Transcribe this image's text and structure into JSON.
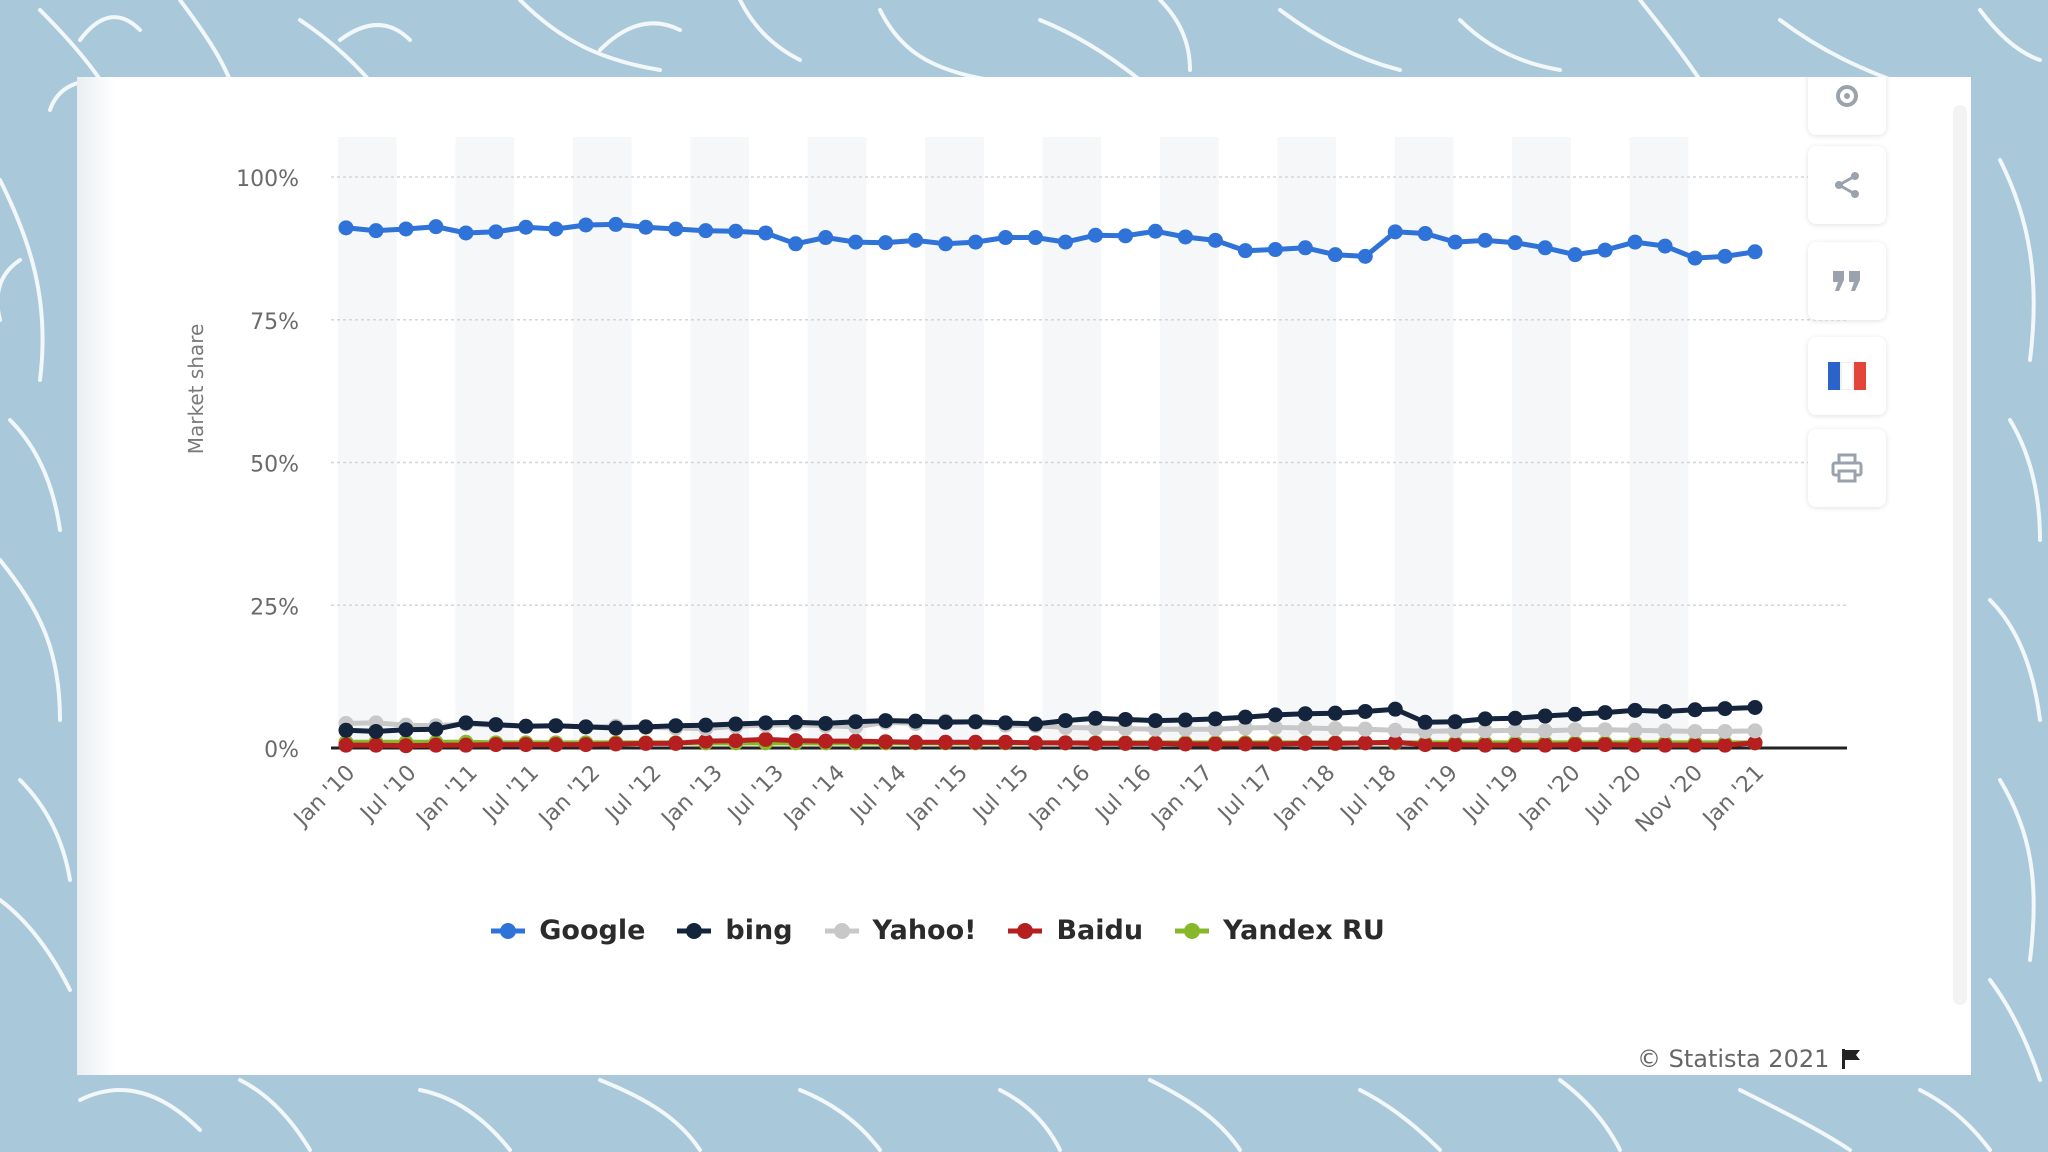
{
  "chart_data": {
    "type": "line",
    "ylabel": "Market share",
    "ylim": [
      0,
      100
    ],
    "yticks": [
      0,
      25,
      50,
      75,
      100
    ],
    "ytick_labels": [
      "0%",
      "25%",
      "50%",
      "75%",
      "100%"
    ],
    "x_tick_labels": [
      "Jan '10",
      "Jul '10",
      "Jan '11",
      "Jul '11",
      "Jan '12",
      "Jul '12",
      "Jan '13",
      "Jul '13",
      "Jan '14",
      "Jul '14",
      "Jan '15",
      "Jul '15",
      "Jan '16",
      "Jul '16",
      "Jan '17",
      "Jul '17",
      "Jan '18",
      "Jul '18",
      "Jan '19",
      "Jul '19",
      "Jan '20",
      "Jul '20",
      "Nov '20",
      "Jan '21"
    ],
    "grid": true,
    "legend_position": "bottom",
    "series": [
      {
        "name": "Google",
        "color": "#2f72d8",
        "values": [
          91.1,
          90.6,
          90.9,
          91.3,
          90.2,
          90.4,
          91.2,
          90.9,
          91.6,
          91.7,
          91.2,
          90.9,
          90.6,
          90.5,
          90.2,
          88.3,
          89.4,
          88.6,
          88.5,
          88.9,
          88.3,
          88.6,
          89.4,
          89.4,
          88.6,
          89.8,
          89.7,
          90.5,
          89.5,
          88.9,
          87.1,
          87.3,
          87.6,
          86.4,
          86.1,
          90.4,
          90.1,
          88.6,
          88.9,
          88.5,
          87.6,
          86.4,
          87.2,
          88.6,
          87.9,
          85.8,
          86.1,
          86.9
        ]
      },
      {
        "name": "bing",
        "color": "#14243d",
        "values": [
          3.1,
          2.9,
          3.2,
          3.3,
          4.4,
          4.1,
          3.8,
          3.9,
          3.7,
          3.5,
          3.7,
          3.9,
          4.0,
          4.2,
          4.4,
          4.5,
          4.3,
          4.6,
          4.8,
          4.7,
          4.5,
          4.6,
          4.4,
          4.2,
          4.8,
          5.2,
          5.0,
          4.8,
          4.9,
          5.1,
          5.4,
          5.8,
          6.0,
          6.1,
          6.4,
          6.8,
          4.5,
          4.6,
          5.1,
          5.2,
          5.6,
          5.9,
          6.2,
          6.6,
          6.4,
          6.7,
          6.9,
          7.1
        ]
      },
      {
        "name": "Yahoo!",
        "color": "#c8c8c8",
        "values": [
          4.3,
          4.4,
          4.0,
          3.9,
          4.2,
          4.0,
          3.8,
          3.9,
          3.7,
          3.8,
          3.6,
          3.5,
          3.4,
          3.8,
          4.0,
          4.1,
          3.9,
          3.7,
          4.5,
          4.3,
          4.7,
          4.5,
          4.0,
          3.9,
          3.6,
          3.5,
          3.4,
          3.3,
          3.3,
          3.3,
          3.5,
          3.6,
          3.5,
          3.4,
          3.3,
          3.1,
          2.9,
          3.0,
          3.0,
          3.1,
          3.0,
          3.2,
          3.2,
          3.1,
          3.0,
          2.9,
          2.9,
          3.0
        ]
      },
      {
        "name": "Baidu",
        "color": "#b51f1f",
        "values": [
          0.5,
          0.5,
          0.4,
          0.5,
          0.5,
          0.6,
          0.6,
          0.6,
          0.6,
          0.7,
          0.8,
          0.8,
          1.2,
          1.3,
          1.5,
          1.3,
          1.2,
          1.2,
          1.1,
          1.0,
          1.0,
          1.0,
          1.0,
          0.9,
          0.9,
          0.8,
          0.8,
          0.8,
          0.7,
          0.7,
          0.7,
          0.7,
          0.8,
          0.8,
          0.9,
          1.0,
          0.6,
          0.6,
          0.5,
          0.5,
          0.5,
          0.6,
          0.6,
          0.5,
          0.5,
          0.5,
          0.5,
          0.9
        ]
      },
      {
        "name": "Yandex RU",
        "color": "#86b82a",
        "values": [
          1.0,
          1.0,
          1.0,
          1.0,
          1.0,
          0.9,
          0.9,
          0.9,
          0.9,
          0.9,
          0.9,
          0.9,
          0.9,
          0.9,
          0.9,
          0.9,
          0.9,
          0.9,
          0.9,
          0.9,
          0.9,
          0.9,
          0.9,
          0.9,
          0.9,
          0.9,
          0.9,
          0.9,
          0.9,
          0.9,
          0.9,
          0.9,
          0.9,
          0.9,
          0.9,
          0.9,
          0.9,
          0.9,
          0.9,
          0.9,
          0.9,
          0.9,
          0.9,
          0.9,
          0.9,
          0.9,
          0.9,
          0.9
        ]
      }
    ]
  },
  "toolbar": {
    "icons": [
      "gear-icon",
      "share-icon",
      "quote-icon",
      "flag-fr-icon",
      "print-icon"
    ]
  },
  "footer": {
    "credit": "© Statista 2021",
    "flag_icon": "flag-icon"
  }
}
